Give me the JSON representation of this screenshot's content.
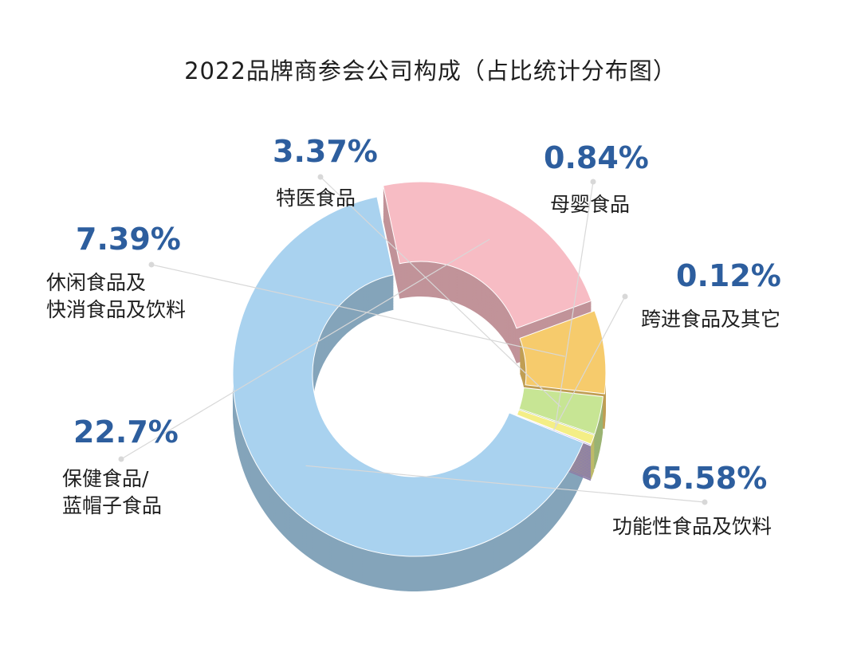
{
  "chart_data": {
    "type": "pie",
    "variant": "donut-3d",
    "title": "2022品牌商参会公司构成（占比统计分布图）",
    "slices": [
      {
        "label": "功能性食品及饮料",
        "label_lines": [
          "功能性食品及饮料"
        ],
        "value": 65.58,
        "value_label": "65.58%",
        "color": "#a9d2ef"
      },
      {
        "label": "保健食品/蓝帽子食品",
        "label_lines": [
          "保健食品/",
          "蓝帽子食品"
        ],
        "value": 22.7,
        "value_label": "22.7%",
        "color": "#f7bcc4"
      },
      {
        "label": "休闲食品及快消食品及饮料",
        "label_lines": [
          "休闲食品及",
          "快消食品及饮料"
        ],
        "value": 7.39,
        "value_label": "7.39%",
        "color": "#f6cb6c"
      },
      {
        "label": "特医食品",
        "label_lines": [
          "特医食品"
        ],
        "value": 3.37,
        "value_label": "3.37%",
        "color": "#c7e594"
      },
      {
        "label": "母婴食品",
        "label_lines": [
          "母婴食品"
        ],
        "value": 0.84,
        "value_label": "0.84%",
        "color": "#f4ee86"
      },
      {
        "label": "跨进食品及其它",
        "label_lines": [
          "跨进食品及其它"
        ],
        "value": 0.12,
        "value_label": "0.12%",
        "color": "#b5a1d8"
      }
    ],
    "value_color": "#2d5e9e"
  }
}
